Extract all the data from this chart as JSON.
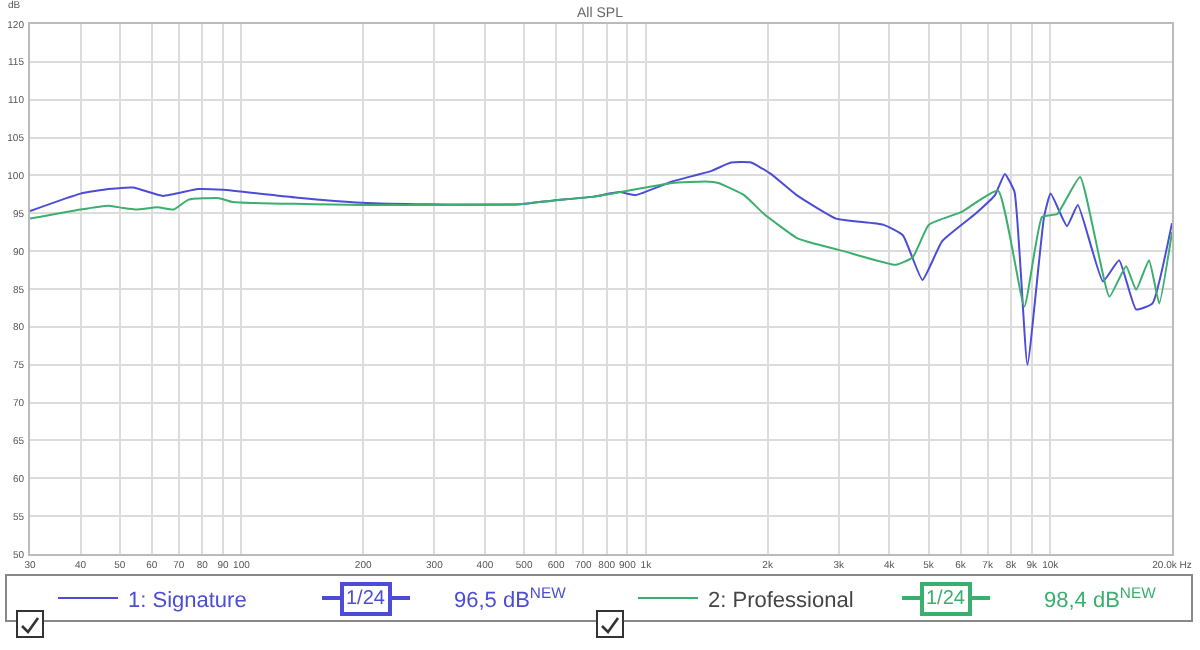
{
  "chart_data": {
    "type": "line",
    "title": "All SPL",
    "ylabel": "dB",
    "log": "x",
    "grid": true,
    "legend": "bottom",
    "marker": "none",
    "line_style": "solid",
    "xlim": [
      30,
      20000
    ],
    "ylim": [
      50,
      120
    ],
    "xticks": [
      30,
      40,
      50,
      60,
      70,
      80,
      90,
      100,
      200,
      300,
      400,
      500,
      600,
      700,
      800,
      900,
      {
        "value": 1000,
        "label": "1k"
      },
      {
        "value": 2000,
        "label": "2k"
      },
      {
        "value": 3000,
        "label": "3k"
      },
      {
        "value": 4000,
        "label": "4k"
      },
      {
        "value": 5000,
        "label": "5k"
      },
      {
        "value": 6000,
        "label": "6k"
      },
      {
        "value": 7000,
        "label": "7k"
      },
      {
        "value": 8000,
        "label": "8k"
      },
      {
        "value": 9000,
        "label": "9k"
      },
      {
        "value": 10000,
        "label": "10k"
      },
      {
        "value": 20000,
        "label": "20.0k Hz"
      }
    ],
    "yticks": [
      50,
      55,
      60,
      65,
      70,
      75,
      80,
      85,
      90,
      95,
      100,
      105,
      110,
      115,
      120
    ],
    "series": [
      {
        "name": "1: Signature",
        "color": "#4c4cd6",
        "x": [
          30,
          40,
          47,
          54,
          64,
          78,
          90,
          136,
          198,
          289,
          488,
          591,
          742,
          860,
          945,
          1162,
          1454,
          1624,
          1820,
          2037,
          2360,
          2955,
          3860,
          4320,
          4830,
          5400,
          6520,
          7300,
          7720,
          8160,
          8780,
          9650,
          10020,
          11000,
          11700,
          13500,
          14800,
          16300,
          17900,
          20000
        ],
        "values": [
          95.3,
          97.6,
          98.2,
          98.4,
          97.3,
          98.2,
          98.1,
          97.1,
          96.4,
          96.2,
          96.2,
          96.7,
          97.2,
          97.8,
          97.4,
          99.2,
          100.6,
          101.7,
          101.7,
          100.2,
          97.4,
          94.3,
          93.5,
          92.1,
          86.2,
          91.3,
          94.9,
          97.4,
          100.2,
          97.8,
          75,
          94.5,
          97.6,
          93.3,
          96.1,
          86,
          88.8,
          82.3,
          83.1,
          93.7
        ]
      },
      {
        "name": "2: Professional",
        "color": "#3aaf6e",
        "x": [
          30,
          40,
          47,
          51,
          55,
          62,
          68,
          74,
          88,
          95,
          198,
          289,
          488,
          591,
          742,
          1162,
          1403,
          1510,
          1750,
          1960,
          2370,
          2650,
          3080,
          4150,
          4570,
          5010,
          6040,
          7430,
          8630,
          9540,
          10400,
          11850,
          14000,
          15400,
          16300,
          17550,
          18600,
          20000
        ],
        "values": [
          94.3,
          95.5,
          96,
          95.7,
          95.5,
          95.8,
          95.5,
          96.8,
          97,
          96.5,
          96.1,
          96.1,
          96.2,
          96.7,
          97.2,
          99,
          99.2,
          99,
          97.4,
          94.9,
          91.7,
          90.9,
          90,
          88.2,
          89.2,
          93.5,
          95.2,
          98,
          82.7,
          94.5,
          94.9,
          99.8,
          84,
          88,
          84.9,
          88.8,
          83.1,
          92.5
        ]
      }
    ],
    "annotations": [
      "1/24",
      "96,5 dB$^{NEW}$",
      "1/24",
      "98,4 dB$^{NEW}$"
    ]
  }
}
